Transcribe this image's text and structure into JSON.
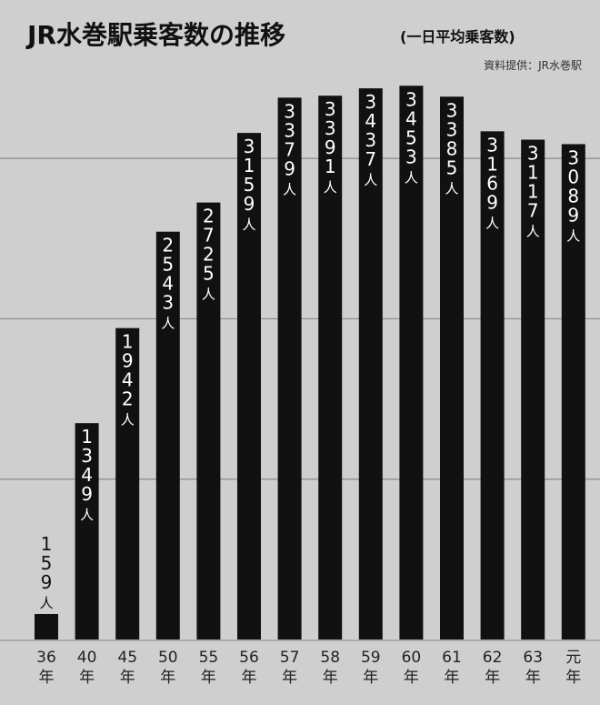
{
  "chart_data": {
    "type": "bar",
    "title": "JR水巻駅乗客数の推移",
    "subtitle": "(一日平均乗客数)",
    "source": "資料提供：JR水巻駅",
    "unit": "人",
    "categories": [
      "36年",
      "40年",
      "45年",
      "50年",
      "55年",
      "56年",
      "57年",
      "58年",
      "59年",
      "60年",
      "61年",
      "62年",
      "63年",
      "元年"
    ],
    "values": [
      159,
      1349,
      1942,
      2543,
      2725,
      3159,
      3379,
      3391,
      3437,
      3453,
      3385,
      3169,
      3117,
      3089
    ],
    "ylim": [
      0,
      3500
    ],
    "grid": true,
    "legend": "none",
    "colors": {
      "bar": "#111111",
      "background": "#cfcfcf",
      "label": "#ffffff"
    }
  }
}
